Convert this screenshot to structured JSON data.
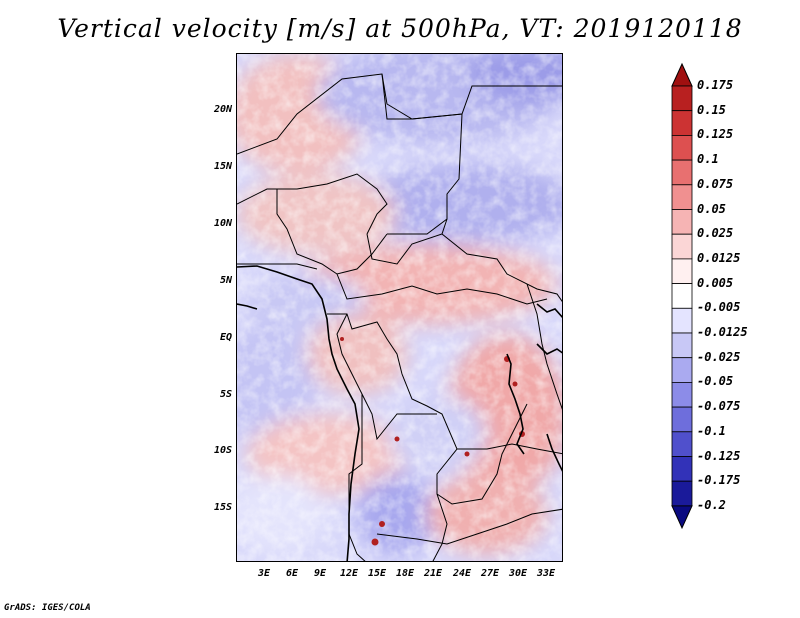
{
  "title": "Vertical velocity [m/s] at 500hPa, VT: 2019120118",
  "footer": "GrADS: IGES/COLA",
  "lat_labels": [
    "20N",
    "15N",
    "10N",
    "5N",
    "EQ",
    "5S",
    "10S",
    "15S"
  ],
  "lon_labels": [
    "3E",
    "6E",
    "9E",
    "12E",
    "15E",
    "18E",
    "21E",
    "24E",
    "27E",
    "30E",
    "33E"
  ],
  "colorbar": {
    "levels": [
      "0.175",
      "0.15",
      "0.125",
      "0.1",
      "0.075",
      "0.05",
      "0.025",
      "0.0125",
      "0.005",
      "-0.005",
      "-0.0125",
      "-0.025",
      "-0.05",
      "-0.075",
      "-0.1",
      "-0.125",
      "-0.175",
      "-0.2"
    ],
    "colors": [
      "#a01010",
      "#b82020",
      "#cc3333",
      "#dd5050",
      "#e87070",
      "#f09090",
      "#f6b4b4",
      "#fbd6d6",
      "#fff0f0",
      "#ffffff",
      "#e4e4ff",
      "#c8c8f6",
      "#aaaaf0",
      "#8c8ce8",
      "#6e6edc",
      "#5050cc",
      "#3232b8",
      "#1a1a9a",
      "#0a0a80"
    ]
  }
}
